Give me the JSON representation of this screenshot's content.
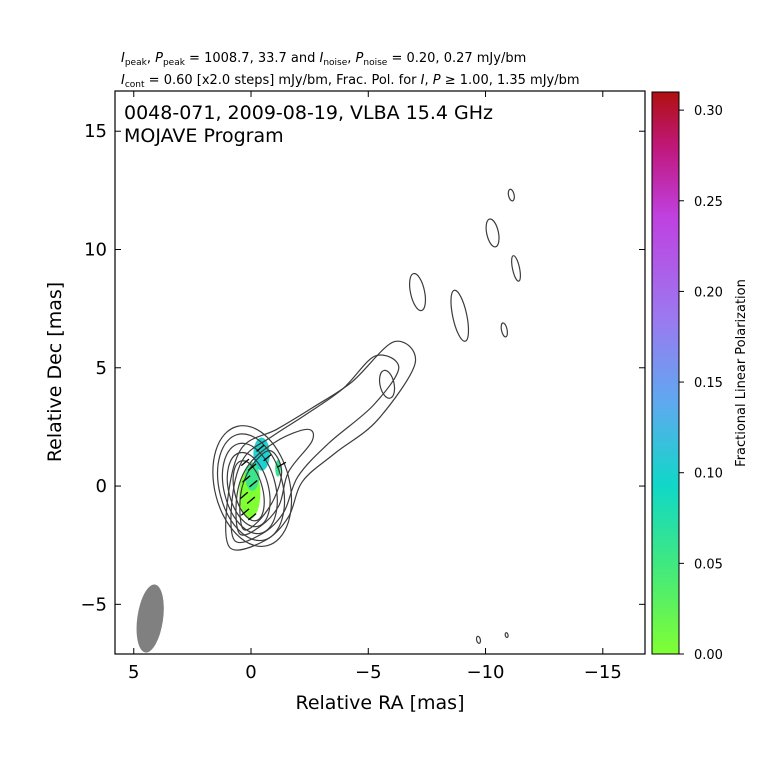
{
  "chart_data": {
    "type": "contour",
    "title_lines": [
      [
        {
          "t": "I",
          "s": "italic"
        },
        {
          "t": "peak",
          "s": "sub"
        },
        {
          "t": ", "
        },
        {
          "t": "P",
          "s": "italic"
        },
        {
          "t": "peak",
          "s": "sub"
        },
        {
          "t": " = 1008.7, 33.7 and "
        },
        {
          "t": "I",
          "s": "italic"
        },
        {
          "t": "noise",
          "s": "sub"
        },
        {
          "t": ", "
        },
        {
          "t": "P",
          "s": "italic"
        },
        {
          "t": "noise",
          "s": "sub"
        },
        {
          "t": " = 0.20, 0.27 mJy/bm"
        }
      ],
      [
        {
          "t": "I",
          "s": "italic"
        },
        {
          "t": "cont",
          "s": "sub"
        },
        {
          "t": " = 0.60 [x2.0 steps] mJy/bm, Frac. Pol. for "
        },
        {
          "t": "I",
          "s": "italic"
        },
        {
          "t": ", "
        },
        {
          "t": "P",
          "s": "italic"
        },
        {
          "t": " ≥  1.00, 1.35 mJy/bm"
        }
      ]
    ],
    "annotation": [
      "0048-071, 2009-08-19, VLBA 15.4 GHz",
      "MOJAVE Program"
    ],
    "xlabel": "Relative RA [mas]",
    "ylabel": "Relative Dec [mas]",
    "xlim": [
      5.8,
      -16.8
    ],
    "ylim": [
      -7.1,
      16.7
    ],
    "xticks": [
      5,
      0,
      -5,
      -10,
      -15
    ],
    "yticks": [
      -5,
      0,
      5,
      10,
      15
    ],
    "colorbar": {
      "label": "Fractional Linear Polarization",
      "range": [
        0.0,
        0.31
      ],
      "ticks": [
        "0.00",
        "0.05",
        "0.10",
        "0.15",
        "0.20",
        "0.25",
        "0.30"
      ],
      "colors": [
        "#80ff33",
        "#40e880",
        "#10d8c8",
        "#60a8f0",
        "#9c78f0",
        "#c040e0",
        "#c0187c",
        "#b01010"
      ]
    },
    "core_contours": [
      {
        "x": 0.1,
        "y": -0.2,
        "rx": 0.6,
        "ry": 1.3
      },
      {
        "x": 0.1,
        "y": -0.15,
        "rx": 0.85,
        "ry": 1.6
      },
      {
        "x": 0.05,
        "y": -0.1,
        "rx": 1.1,
        "ry": 1.95
      },
      {
        "x": 0.0,
        "y": -0.05,
        "rx": 1.35,
        "ry": 2.3
      },
      {
        "x": -0.05,
        "y": 0.0,
        "rx": 1.6,
        "ry": 2.6
      }
    ],
    "jet_contours": [
      [
        [
          0.9,
          -2.6
        ],
        [
          -0.6,
          -2.3
        ],
        [
          -1.6,
          -1.3
        ],
        [
          -2.2,
          0.2
        ],
        [
          -3.6,
          1.4
        ],
        [
          -5.4,
          2.8
        ],
        [
          -7.0,
          5.2
        ],
        [
          -6.1,
          6.1
        ],
        [
          -4.3,
          4.4
        ],
        [
          -2.6,
          3.3
        ],
        [
          -1.1,
          2.4
        ],
        [
          0.4,
          1.6
        ],
        [
          1.0,
          -0.6
        ]
      ],
      [
        [
          0.7,
          -2.3
        ],
        [
          -0.5,
          -2.0
        ],
        [
          -1.4,
          -1.1
        ],
        [
          -2.0,
          0.4
        ],
        [
          -3.3,
          1.8
        ],
        [
          -5.2,
          3.4
        ],
        [
          -6.3,
          5.0
        ],
        [
          -5.3,
          5.5
        ],
        [
          -3.9,
          4.1
        ],
        [
          -2.3,
          3.0
        ],
        [
          -0.9,
          2.1
        ],
        [
          0.3,
          1.2
        ],
        [
          0.8,
          -0.5
        ]
      ],
      [
        [
          0.5,
          -2.0
        ],
        [
          -0.4,
          -1.7
        ],
        [
          -1.2,
          -0.8
        ],
        [
          -1.6,
          0.6
        ],
        [
          -2.6,
          1.9
        ],
        [
          -2.4,
          2.4
        ],
        [
          -1.1,
          1.9
        ],
        [
          0.1,
          0.9
        ],
        [
          0.6,
          -0.4
        ]
      ],
      [
        [
          0.35,
          -1.8
        ],
        [
          -0.3,
          -1.5
        ],
        [
          -1.0,
          -0.5
        ],
        [
          -1.3,
          0.7
        ],
        [
          -0.8,
          1.5
        ],
        [
          0.0,
          0.8
        ],
        [
          0.45,
          -0.4
        ]
      ]
    ],
    "islands": [
      {
        "x": -5.8,
        "y": 4.3,
        "rx": 0.3,
        "ry": 0.6
      },
      {
        "x": -7.1,
        "y": 8.2,
        "rx": 0.3,
        "ry": 0.8
      },
      {
        "x": -8.9,
        "y": 7.2,
        "rx": 0.3,
        "ry": 1.1
      },
      {
        "x": -10.3,
        "y": 10.7,
        "rx": 0.25,
        "ry": 0.6
      },
      {
        "x": -11.3,
        "y": 9.2,
        "rx": 0.15,
        "ry": 0.55
      },
      {
        "x": -11.1,
        "y": 12.3,
        "rx": 0.12,
        "ry": 0.25
      },
      {
        "x": -10.8,
        "y": 6.6,
        "rx": 0.12,
        "ry": 0.3
      },
      {
        "x": -9.7,
        "y": -6.5,
        "rx": 0.08,
        "ry": 0.15
      },
      {
        "x": -10.9,
        "y": -6.3,
        "rx": 0.06,
        "ry": 0.1
      }
    ],
    "polarization": [
      {
        "x": 0.05,
        "y": -0.3,
        "rx": 0.45,
        "ry": 1.1,
        "fpol": 0.0
      },
      {
        "x": -0.45,
        "y": 1.35,
        "rx": 0.35,
        "ry": 0.7,
        "fpol": 0.1
      },
      {
        "x": -0.05,
        "y": 0.4,
        "rx": 0.3,
        "ry": 0.6,
        "fpol": 0.055
      },
      {
        "x": -1.15,
        "y": 0.75,
        "rx": 0.12,
        "ry": 0.35,
        "fpol": 0.06
      }
    ],
    "evpa_ticks": [
      {
        "x": 0.25,
        "y": 1.0,
        "angle": -40
      },
      {
        "x": -0.05,
        "y": 0.8,
        "angle": -40
      },
      {
        "x": 0.2,
        "y": 0.3,
        "angle": -40
      },
      {
        "x": -0.1,
        "y": 0.1,
        "angle": -40
      },
      {
        "x": 0.3,
        "y": -0.4,
        "angle": -40
      },
      {
        "x": 0.0,
        "y": -0.6,
        "angle": -40
      },
      {
        "x": 0.25,
        "y": -1.1,
        "angle": -40
      },
      {
        "x": -0.05,
        "y": -1.3,
        "angle": -40
      },
      {
        "x": -0.4,
        "y": 1.6,
        "angle": -40
      },
      {
        "x": -0.7,
        "y": 1.2,
        "angle": -40
      },
      {
        "x": -1.3,
        "y": 0.9,
        "angle": -30
      }
    ],
    "beam": {
      "x": 4.3,
      "y": -5.6,
      "major": 1.45,
      "minor": 0.55,
      "pa_deg": 8
    }
  }
}
